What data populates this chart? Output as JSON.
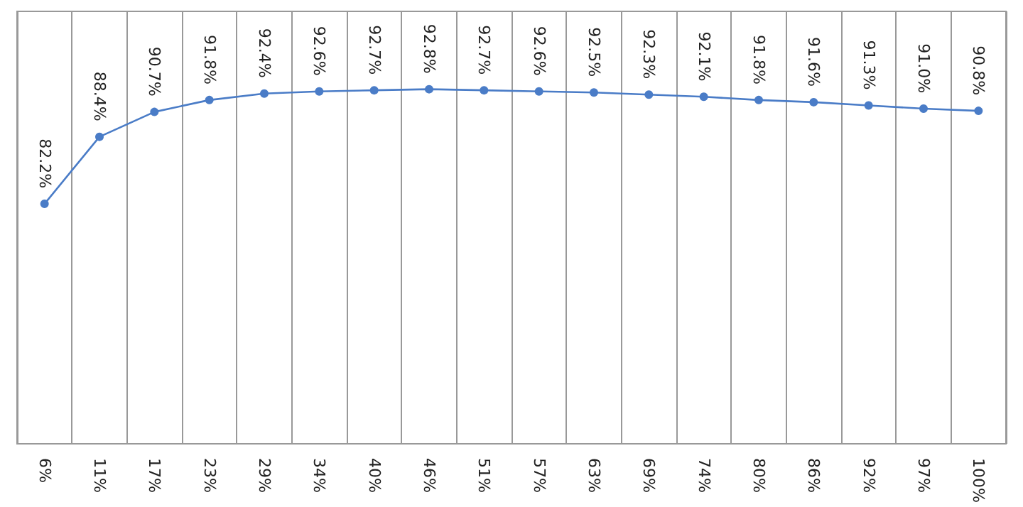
{
  "chart_data": {
    "type": "line",
    "categories": [
      "6%",
      "11%",
      "17%",
      "23%",
      "29%",
      "34%",
      "40%",
      "46%",
      "51%",
      "57%",
      "63%",
      "69%",
      "74%",
      "80%",
      "86%",
      "92%",
      "97%",
      "100%"
    ],
    "values": [
      82.2,
      88.4,
      90.7,
      91.8,
      92.4,
      92.6,
      92.7,
      92.8,
      92.7,
      92.6,
      92.5,
      92.3,
      92.1,
      91.8,
      91.6,
      91.3,
      91.0,
      90.8
    ],
    "value_labels": [
      "82.2%",
      "88.4%",
      "90.7%",
      "91.8%",
      "92.4%",
      "92.6%",
      "92.7%",
      "92.8%",
      "92.7%",
      "92.6%",
      "92.5%",
      "92.3%",
      "92.1%",
      "91.8%",
      "91.6%",
      "91.3%",
      "91.0%",
      "90.8%"
    ],
    "color": "#4a7cc7",
    "ylim": [
      60,
      100
    ],
    "tick_labels": "x",
    "grid": "x",
    "marker": "circle",
    "line_style": "solid"
  }
}
